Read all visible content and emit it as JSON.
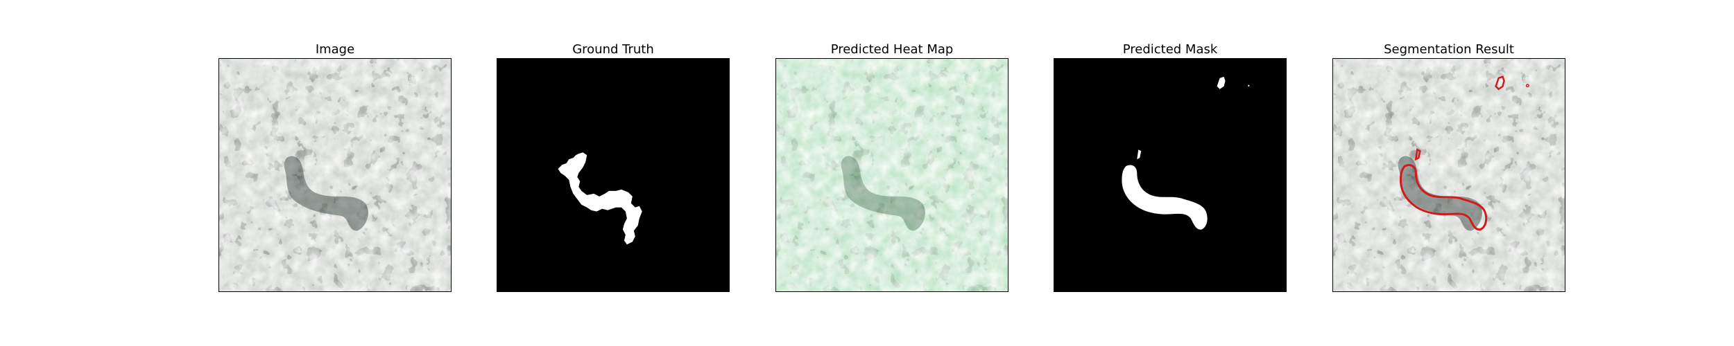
{
  "figure": {
    "panels": [
      {
        "id": "image",
        "title": "Image"
      },
      {
        "id": "ground-truth",
        "title": "Ground Truth"
      },
      {
        "id": "heat-map",
        "title": "Predicted Heat Map"
      },
      {
        "id": "mask",
        "title": "Predicted Mask"
      },
      {
        "id": "result",
        "title": "Segmentation Result"
      }
    ]
  },
  "colors": {
    "mask_foreground": "#ffffff",
    "mask_background": "#000000",
    "heat_overlay": "#7ed68f",
    "contour": "#d11a1a",
    "texture_light": "#8f988f",
    "texture_dark": "#3a3d3a"
  }
}
